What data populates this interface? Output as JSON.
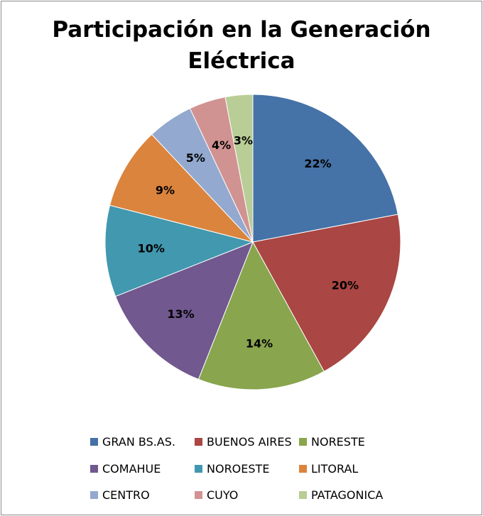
{
  "chart_data": {
    "type": "pie",
    "title": [
      "Participación en la Generación",
      "Eléctrica"
    ],
    "categories": [
      "GRAN BS.AS.",
      "BUENOS AIRES",
      "NORESTE",
      "COMAHUE",
      "NOROESTE",
      "LITORAL",
      "CENTRO",
      "CUYO",
      "PATAGONICA"
    ],
    "values": [
      22,
      20,
      14,
      13,
      10,
      9,
      5,
      4,
      3
    ],
    "labels": [
      "22%",
      "20%",
      "14%",
      "13%",
      "10%",
      "9%",
      "5%",
      "4%",
      "3%"
    ],
    "colors": [
      "#4572A7",
      "#AA4643",
      "#89A54E",
      "#71588F",
      "#4198AF",
      "#DB843D",
      "#93A9CF",
      "#D19392",
      "#B9CD96"
    ],
    "legend_position": "bottom",
    "start": "12 o'clock",
    "direction": "clockwise"
  }
}
